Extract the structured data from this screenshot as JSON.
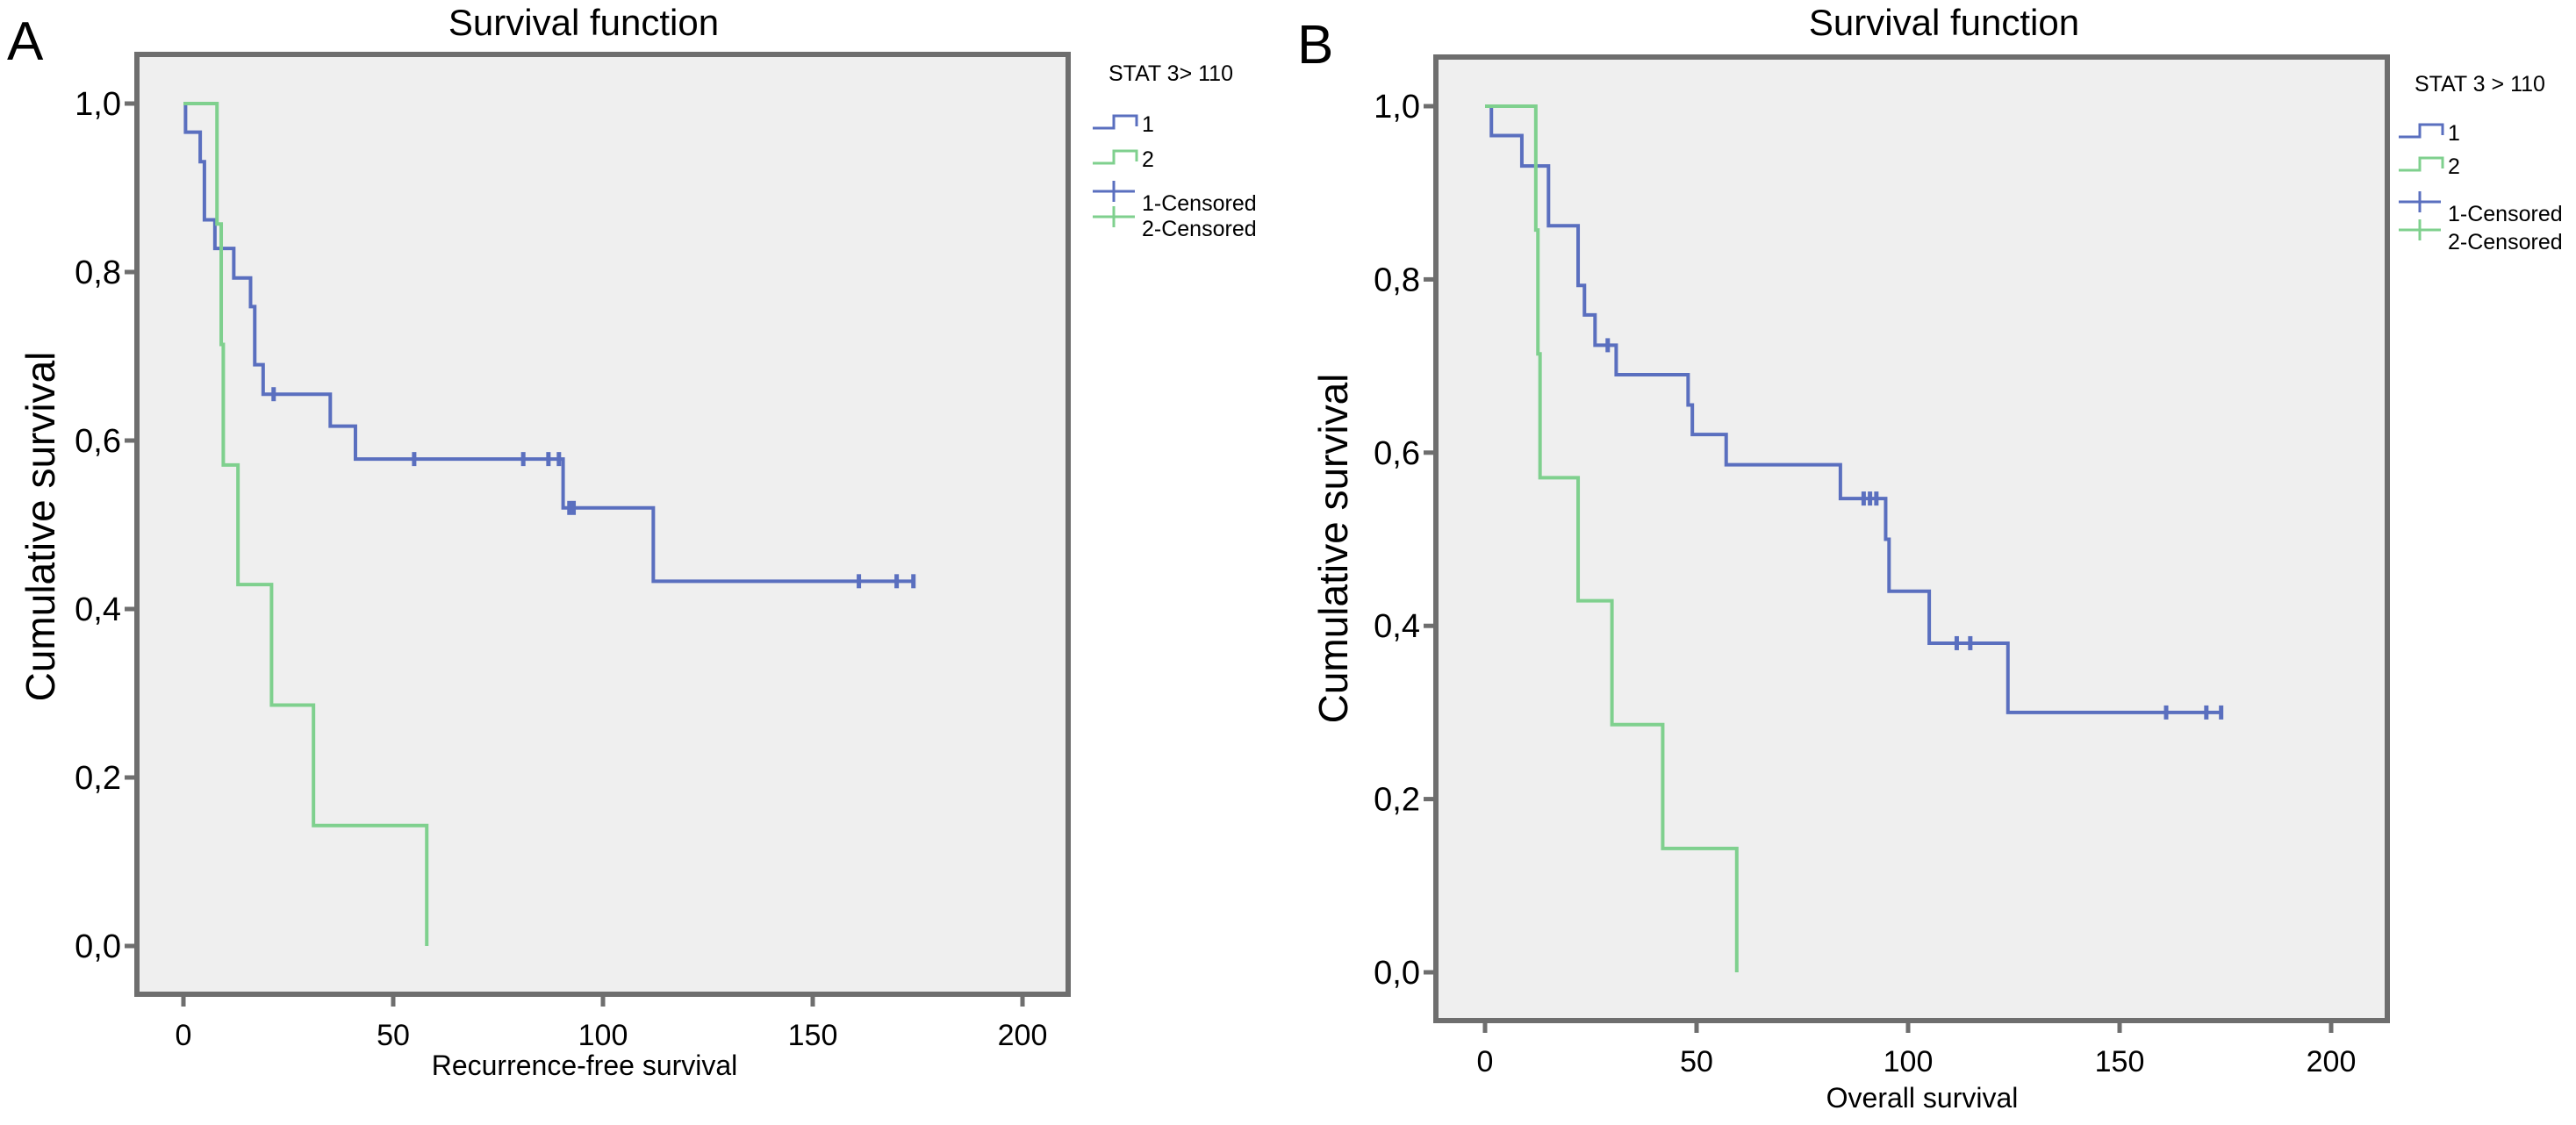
{
  "colors": {
    "group1": "#5a6fbf",
    "group2": "#7fd08e",
    "plot_bg": "#efefef",
    "frame": "#6e6e6e"
  },
  "chart_data": [
    {
      "type": "line",
      "panel_label": "A",
      "title": "Survival function",
      "xlabel": "Recurrence-free survival",
      "ylabel": "Cumulative survival",
      "xlim": [
        0,
        200
      ],
      "ylim": [
        0,
        1
      ],
      "xticks": [
        "0",
        "50",
        "100",
        "150",
        "200"
      ],
      "xtick_values": [
        0,
        50,
        100,
        150,
        200
      ],
      "yticks": [
        "0,0",
        "0,2",
        "0,4",
        "0,6",
        "0,8",
        "1,0"
      ],
      "ytick_values": [
        0,
        0.2,
        0.4,
        0.6,
        0.8,
        1.0
      ],
      "grid": false,
      "legend": {
        "title": "STAT 3> 110",
        "position": "right",
        "entries": [
          "1",
          "2",
          "1-Censored",
          "2-Censored"
        ]
      },
      "series": [
        {
          "name": "1",
          "steps": [
            [
              0.5,
              0.966
            ],
            [
              4,
              0.931
            ],
            [
              5,
              0.862
            ],
            [
              7.5,
              0.828
            ],
            [
              12,
              0.793
            ],
            [
              16,
              0.759
            ],
            [
              17,
              0.69
            ],
            [
              19,
              0.655
            ],
            [
              35,
              0.617
            ],
            [
              41,
              0.578
            ],
            [
              90.5,
              0.52
            ],
            [
              112,
              0.433
            ]
          ],
          "censored": [
            21.5,
            55,
            81,
            87,
            89.5,
            92,
            93,
            161,
            170,
            174
          ]
        },
        {
          "name": "2",
          "steps": [
            [
              8,
              0.857
            ],
            [
              9,
              0.714
            ],
            [
              9.5,
              0.571
            ],
            [
              13,
              0.429
            ],
            [
              21,
              0.286
            ],
            [
              31,
              0.143
            ],
            [
              58,
              0
            ]
          ],
          "censored": []
        }
      ]
    },
    {
      "type": "line",
      "panel_label": "B",
      "title": "Survival function",
      "xlabel": "Overall survival",
      "ylabel": "Cumulative survival",
      "xlim": [
        0,
        200
      ],
      "ylim": [
        0,
        1
      ],
      "xticks": [
        "0",
        "50",
        "100",
        "150",
        "200"
      ],
      "xtick_values": [
        0,
        50,
        100,
        150,
        200
      ],
      "yticks": [
        "0,0",
        "0,2",
        "0,4",
        "0,6",
        "0,8",
        "1,0"
      ],
      "ytick_values": [
        0,
        0.2,
        0.4,
        0.6,
        0.8,
        1.0
      ],
      "grid": false,
      "legend": {
        "title": "STAT 3 > 110",
        "position": "right",
        "entries": [
          "1",
          "2",
          "1-Censored",
          "2-Censored"
        ]
      },
      "series": [
        {
          "name": "1",
          "steps": [
            [
              1.5,
              0.966
            ],
            [
              8.7,
              0.931
            ],
            [
              15,
              0.862
            ],
            [
              22,
              0.793
            ],
            [
              23.5,
              0.759
            ],
            [
              26,
              0.724
            ],
            [
              31,
              0.69
            ],
            [
              48,
              0.655
            ],
            [
              49,
              0.621
            ],
            [
              57,
              0.586
            ],
            [
              84,
              0.547
            ],
            [
              94.7,
              0.5
            ],
            [
              95.5,
              0.44
            ],
            [
              105,
              0.38
            ],
            [
              123.6,
              0.3
            ]
          ],
          "censored": [
            29,
            89.5,
            91,
            92.5,
            111.5,
            114.7,
            161,
            170.5,
            174
          ]
        },
        {
          "name": "2",
          "steps": [
            [
              12,
              0.857
            ],
            [
              12.5,
              0.714
            ],
            [
              13,
              0.571
            ],
            [
              22,
              0.429
            ],
            [
              30,
              0.286
            ],
            [
              42,
              0.143
            ],
            [
              59.5,
              0
            ]
          ],
          "censored": []
        }
      ]
    }
  ]
}
